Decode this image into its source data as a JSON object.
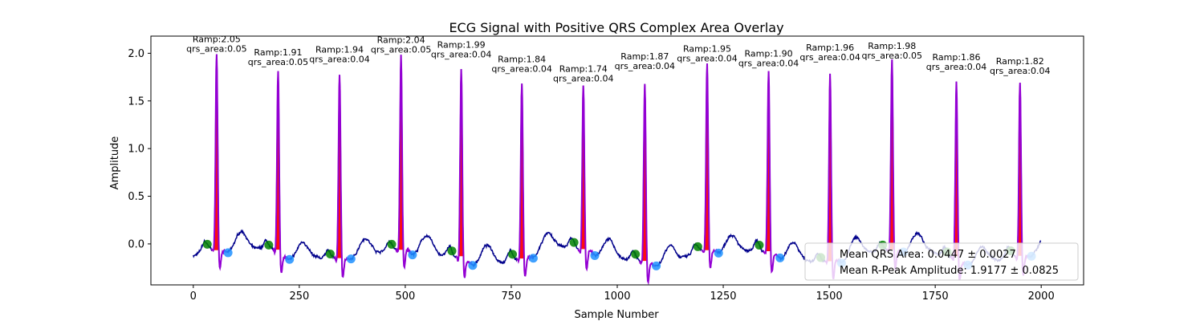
{
  "chart_data": {
    "type": "line",
    "title": "ECG Signal with Positive QRS Complex Area Overlay",
    "xlabel": "Sample Number",
    "ylabel": "Amplitude",
    "xlim": [
      -100,
      2100
    ],
    "ylim": [
      -0.43,
      2.18
    ],
    "xticks": [
      0,
      250,
      500,
      750,
      1000,
      1250,
      1500,
      1750,
      2000
    ],
    "yticks": [
      0.0,
      0.5,
      1.0,
      1.5,
      2.0
    ],
    "xtick_labels": [
      "0",
      "250",
      "500",
      "750",
      "1000",
      "1250",
      "1500",
      "1750",
      "2000"
    ],
    "ytick_labels": [
      "0.0",
      "0.5",
      "1.0",
      "1.5",
      "2.0"
    ],
    "colors": {
      "signal": "#00008b",
      "qrs": "#9400d3",
      "area": "#ff0000",
      "q_marker": "#1e90ff",
      "s_marker": "#008000"
    },
    "beats": [
      {
        "r_x": 55,
        "r_amp": 2.05,
        "qrs_area": 0.05,
        "annotation": [
          "Ramp:2.05",
          "qrs_area:0.05"
        ]
      },
      {
        "r_x": 200,
        "r_amp": 1.91,
        "qrs_area": 0.05,
        "annotation": [
          "Ramp:1.91",
          "qrs_area:0.05"
        ]
      },
      {
        "r_x": 345,
        "r_amp": 1.94,
        "qrs_area": 0.04,
        "annotation": [
          "Ramp:1.94",
          "qrs_area:0.04"
        ]
      },
      {
        "r_x": 490,
        "r_amp": 2.04,
        "qrs_area": 0.05,
        "annotation": [
          "Ramp:2.04",
          "qrs_area:0.05"
        ]
      },
      {
        "r_x": 632,
        "r_amp": 1.99,
        "qrs_area": 0.04,
        "annotation": [
          "Ramp:1.99",
          "qrs_area:0.04"
        ]
      },
      {
        "r_x": 775,
        "r_amp": 1.84,
        "qrs_area": 0.04,
        "annotation": [
          "Ramp:1.84",
          "qrs_area:0.04"
        ]
      },
      {
        "r_x": 920,
        "r_amp": 1.74,
        "qrs_area": 0.04,
        "annotation": [
          "Ramp:1.74",
          "qrs_area:0.04"
        ]
      },
      {
        "r_x": 1065,
        "r_amp": 1.87,
        "qrs_area": 0.04,
        "annotation": [
          "Ramp:1.87",
          "qrs_area:0.04"
        ]
      },
      {
        "r_x": 1212,
        "r_amp": 1.95,
        "qrs_area": 0.04,
        "annotation": [
          "Ramp:1.95",
          "qrs_area:0.04"
        ]
      },
      {
        "r_x": 1357,
        "r_amp": 1.9,
        "qrs_area": 0.04,
        "annotation": [
          "Ramp:1.90",
          "qrs_area:0.04"
        ]
      },
      {
        "r_x": 1502,
        "r_amp": 1.96,
        "qrs_area": 0.04,
        "annotation": [
          "Ramp:1.96",
          "qrs_area:0.04"
        ]
      },
      {
        "r_x": 1648,
        "r_amp": 1.98,
        "qrs_area": 0.05,
        "annotation": [
          "Ramp:1.98",
          "qrs_area:0.05"
        ]
      },
      {
        "r_x": 1800,
        "r_amp": 1.86,
        "qrs_area": 0.04,
        "annotation": [
          "Ramp:1.86",
          "qrs_area:0.04"
        ]
      },
      {
        "r_x": 1950,
        "r_amp": 1.82,
        "qrs_area": 0.04,
        "annotation": [
          "Ramp:1.82",
          "qrs_area:0.04"
        ]
      }
    ],
    "legend": {
      "placement": "lower-right",
      "entries": [
        "Mean QRS Area: 0.0447 ± 0.0027",
        "Mean R-Peak Amplitude: 1.9177 ± 0.0825"
      ]
    }
  }
}
